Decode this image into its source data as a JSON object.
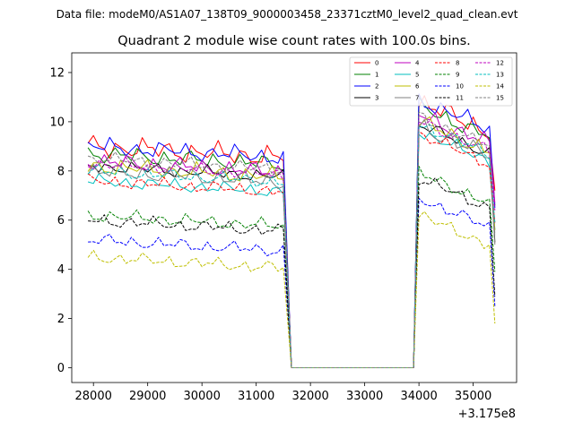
{
  "chart_data": {
    "type": "line",
    "suptitle": "Data file: modeM0/AS1A07_138T09_9000003458_23371cztM0_level2_quad_clean.evt",
    "title": "Quadrant 2 module wise count rates with 100.0s bins.",
    "xlabel": "",
    "ylabel": "",
    "x_offset_label": "+3.175e8",
    "xlim": [
      27600,
      35800
    ],
    "ylim": [
      -0.6,
      12.8
    ],
    "xticks": [
      28000,
      29000,
      30000,
      31000,
      32000,
      33000,
      34000,
      35000
    ],
    "yticks": [
      0,
      2,
      4,
      6,
      8,
      10,
      12
    ],
    "legend_position": "top-right",
    "gap": {
      "start": 31550,
      "drop": 31650,
      "rise": 33900,
      "end": 34000
    },
    "segment1_x": [
      27900,
      28000,
      28100,
      28200,
      28300,
      28400,
      28500,
      28600,
      28700,
      28800,
      28900,
      29000,
      29100,
      29200,
      29300,
      29400,
      29500,
      29600,
      29700,
      29800,
      29900,
      30000,
      30100,
      30200,
      30300,
      30400,
      30500,
      30600,
      30700,
      30800,
      30900,
      31000,
      31100,
      31200,
      31300,
      31400,
      31500
    ],
    "segment2_x": [
      34000,
      34100,
      34200,
      34300,
      34400,
      34500,
      34600,
      34700,
      34800,
      34900,
      35000,
      35100,
      35200,
      35300,
      35400
    ],
    "series": [
      {
        "name": "0",
        "color": "#ff0000",
        "dash": "solid",
        "level1": 9.0,
        "level2": 9.8,
        "amp": 0.5
      },
      {
        "name": "1",
        "color": "#008000",
        "dash": "solid",
        "level1": 8.7,
        "level2": 9.6,
        "amp": 0.4
      },
      {
        "name": "2",
        "color": "#0000ff",
        "dash": "solid",
        "level1": 9.0,
        "level2": 9.9,
        "amp": 0.4
      },
      {
        "name": "3",
        "color": "#000000",
        "dash": "solid",
        "level1": 8.2,
        "level2": 8.9,
        "amp": 0.3
      },
      {
        "name": "4",
        "color": "#bf00bf",
        "dash": "solid",
        "level1": 8.4,
        "level2": 9.3,
        "amp": 0.4
      },
      {
        "name": "5",
        "color": "#00bfbf",
        "dash": "solid",
        "level1": 7.6,
        "level2": 8.6,
        "amp": 0.3
      },
      {
        "name": "6",
        "color": "#bfbf00",
        "dash": "solid",
        "level1": 8.2,
        "level2": 9.0,
        "amp": 0.4
      },
      {
        "name": "7",
        "color": "#808080",
        "dash": "solid",
        "level1": 8.0,
        "level2": 8.8,
        "amp": 0.4
      },
      {
        "name": "8",
        "color": "#ff0000",
        "dash": "dashed",
        "level1": 7.6,
        "level2": 8.5,
        "amp": 0.3
      },
      {
        "name": "9",
        "color": "#008000",
        "dash": "dashed",
        "level1": 6.2,
        "level2": 6.9,
        "amp": 0.3
      },
      {
        "name": "10",
        "color": "#0000ff",
        "dash": "dashed",
        "level1": 5.2,
        "level2": 5.9,
        "amp": 0.3
      },
      {
        "name": "11",
        "color": "#000000",
        "dash": "dashed",
        "level1": 6.0,
        "level2": 6.7,
        "amp": 0.3
      },
      {
        "name": "12",
        "color": "#bf00bf",
        "dash": "dashed",
        "level1": 8.3,
        "level2": 9.0,
        "amp": 0.3
      },
      {
        "name": "13",
        "color": "#00bfbf",
        "dash": "dashed",
        "level1": 8.0,
        "level2": 8.9,
        "amp": 0.3
      },
      {
        "name": "14",
        "color": "#bfbf00",
        "dash": "dashed",
        "level1": 4.5,
        "level2": 5.2,
        "amp": 0.3
      },
      {
        "name": "15",
        "color": "#808080",
        "dash": "dashed",
        "level1": 8.5,
        "level2": 9.2,
        "amp": 0.3
      }
    ]
  }
}
